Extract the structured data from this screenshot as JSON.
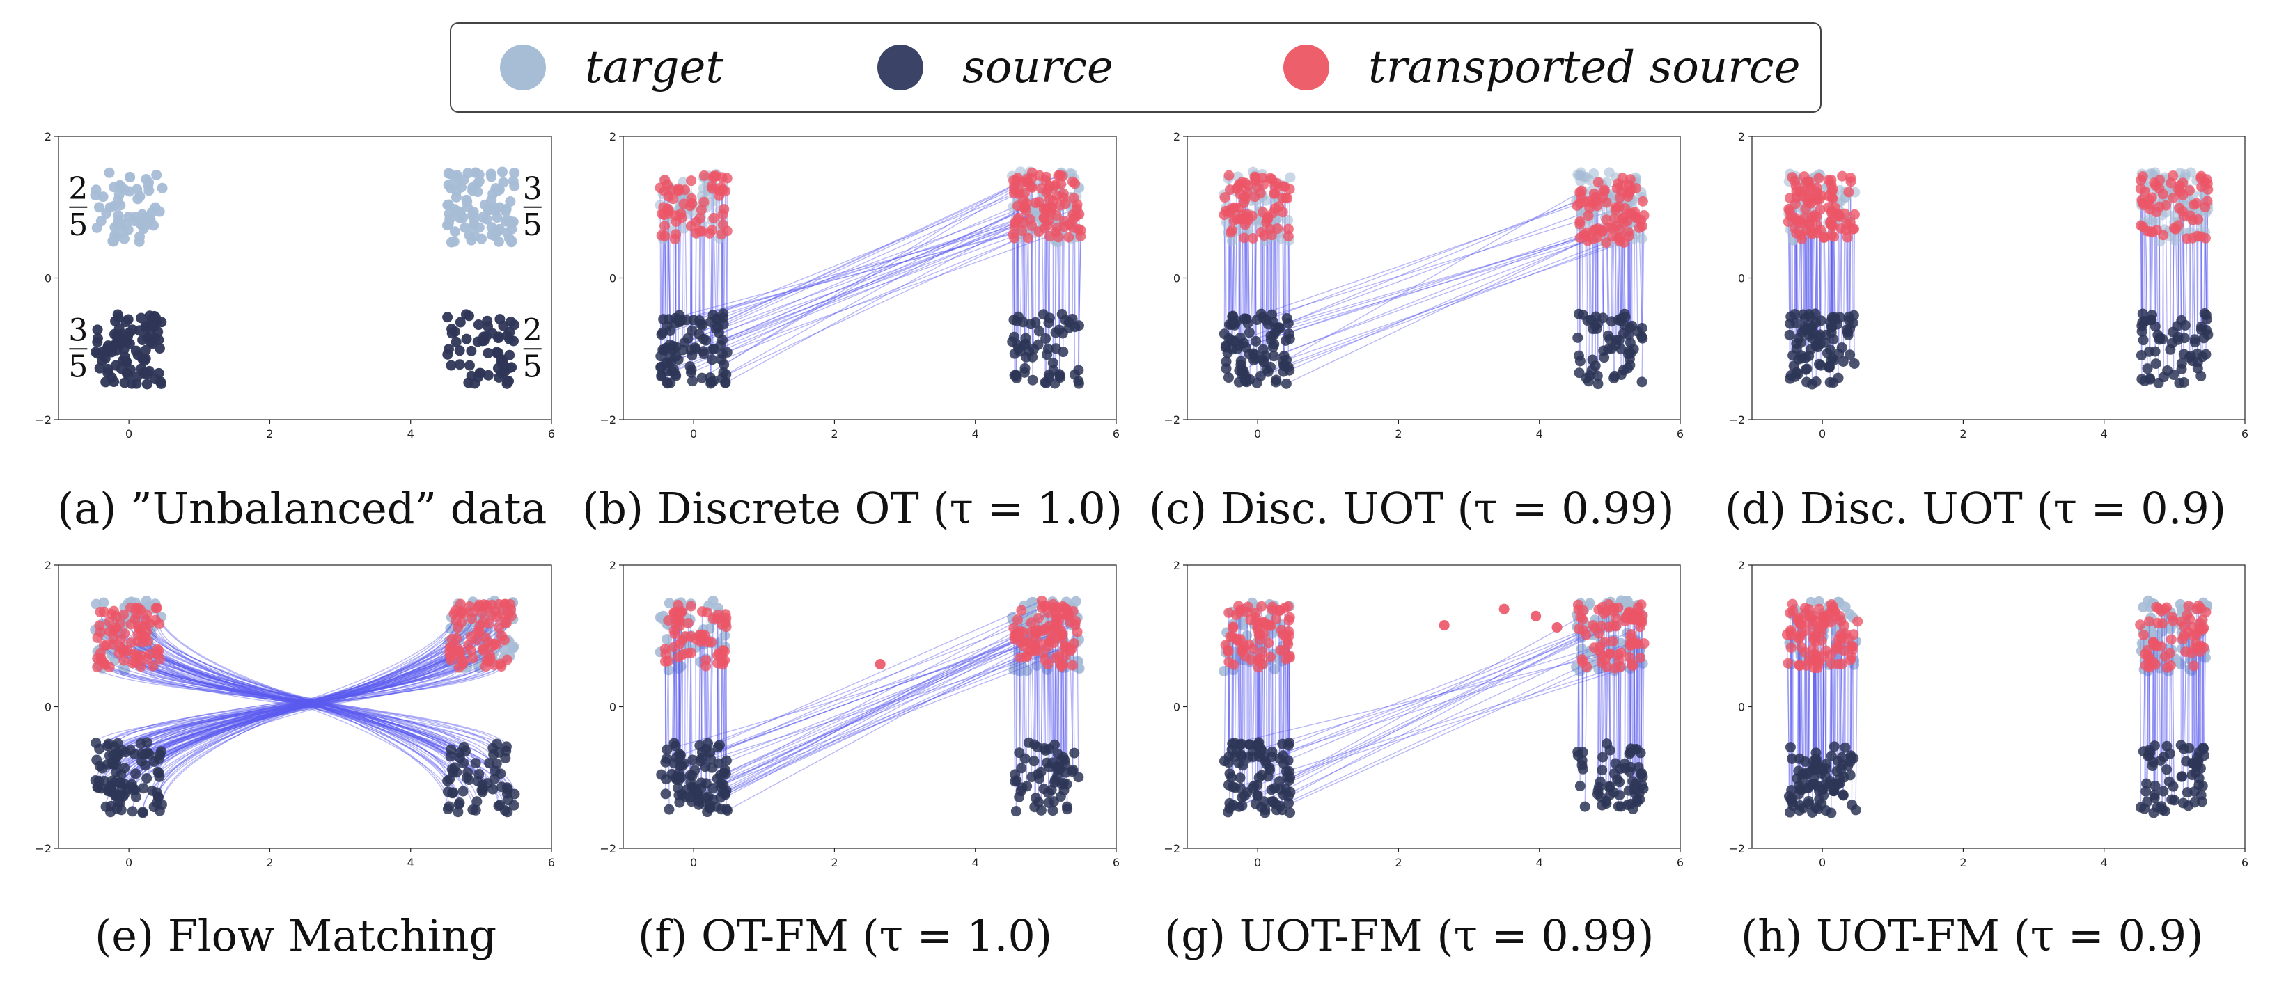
{
  "legend": {
    "items": [
      {
        "label": "target",
        "color": "#a7bdd6"
      },
      {
        "label": "source",
        "color": "#3b4466"
      },
      {
        "label": "transported source",
        "color": "#ec5f6b"
      }
    ]
  },
  "colors": {
    "target": "#a7bdd6",
    "source": "#2e3657",
    "transported": "#ec5566",
    "path": "#5c5cf0"
  },
  "captions": [
    "(a) ”Unbalanced” data",
    "(b) Discrete OT (τ = 1.0)",
    "(c) Disc. UOT (τ = 0.99)",
    "(d) Disc. UOT (τ = 0.9)",
    "(e) Flow Matching",
    "(f) OT-FM (τ = 1.0)",
    "(g) UOT-FM (τ = 0.99)",
    "(h) UOT-FM (τ = 0.9)"
  ],
  "fractions": [
    {
      "num": "2",
      "den": "5"
    },
    {
      "num": "3",
      "den": "5"
    },
    {
      "num": "3",
      "den": "5"
    },
    {
      "num": "2",
      "den": "5"
    }
  ],
  "chart_data": [
    {
      "type": "scatter",
      "panel": "a",
      "title": "",
      "xlim": [
        -1,
        6
      ],
      "ylim": [
        -2,
        2
      ],
      "xticks": [
        "0",
        "2",
        "4",
        "6"
      ],
      "yticks": [
        "-2",
        "0",
        "2"
      ],
      "target_clusters": [
        {
          "center": [
            0,
            1
          ],
          "weight": "2/5"
        },
        {
          "center": [
            5,
            1
          ],
          "weight": "3/5"
        }
      ],
      "source_clusters": [
        {
          "center": [
            0,
            -1.2
          ],
          "weight": "3/5"
        },
        {
          "center": [
            5,
            -1.2
          ],
          "weight": "2/5"
        }
      ],
      "series": [
        {
          "name": "target"
        },
        {
          "name": "source"
        }
      ]
    },
    {
      "type": "scatter",
      "panel": "b",
      "xlim": [
        -1,
        6
      ],
      "ylim": [
        -2,
        2
      ],
      "xticks": [
        "0",
        "2",
        "4",
        "6"
      ],
      "yticks": [
        "-2",
        "0",
        "2"
      ],
      "method": "Discrete OT",
      "tau": 1.0
    },
    {
      "type": "scatter",
      "panel": "c",
      "xlim": [
        -1,
        6
      ],
      "ylim": [
        -2,
        2
      ],
      "xticks": [
        "0",
        "2",
        "4",
        "6"
      ],
      "yticks": [
        "-2",
        "0",
        "2"
      ],
      "method": "Disc. UOT",
      "tau": 0.99
    },
    {
      "type": "scatter",
      "panel": "d",
      "xlim": [
        -1,
        6
      ],
      "ylim": [
        -2,
        2
      ],
      "xticks": [
        "0",
        "2",
        "4",
        "6"
      ],
      "yticks": [
        "-2",
        "0",
        "2"
      ],
      "method": "Disc. UOT",
      "tau": 0.9
    },
    {
      "type": "scatter",
      "panel": "e",
      "xlim": [
        -1,
        6
      ],
      "ylim": [
        -2,
        2
      ],
      "xticks": [
        "0",
        "2",
        "4",
        "6"
      ],
      "yticks": [
        "-2",
        "0",
        "2"
      ],
      "method": "Flow Matching"
    },
    {
      "type": "scatter",
      "panel": "f",
      "xlim": [
        -1,
        6
      ],
      "ylim": [
        -2,
        2
      ],
      "xticks": [
        "0",
        "2",
        "4",
        "6"
      ],
      "yticks": [
        "-2",
        "0",
        "2"
      ],
      "method": "OT-FM",
      "tau": 1.0
    },
    {
      "type": "scatter",
      "panel": "g",
      "xlim": [
        -1,
        6
      ],
      "ylim": [
        -2,
        2
      ],
      "xticks": [
        "0",
        "2",
        "4",
        "6"
      ],
      "yticks": [
        "-2",
        "0",
        "2"
      ],
      "method": "UOT-FM",
      "tau": 0.99
    },
    {
      "type": "scatter",
      "panel": "h",
      "xlim": [
        -1,
        6
      ],
      "ylim": [
        -2,
        2
      ],
      "xticks": [
        "0",
        "2",
        "4",
        "6"
      ],
      "yticks": [
        "-2",
        "0",
        "2"
      ],
      "method": "UOT-FM",
      "tau": 0.9
    }
  ]
}
